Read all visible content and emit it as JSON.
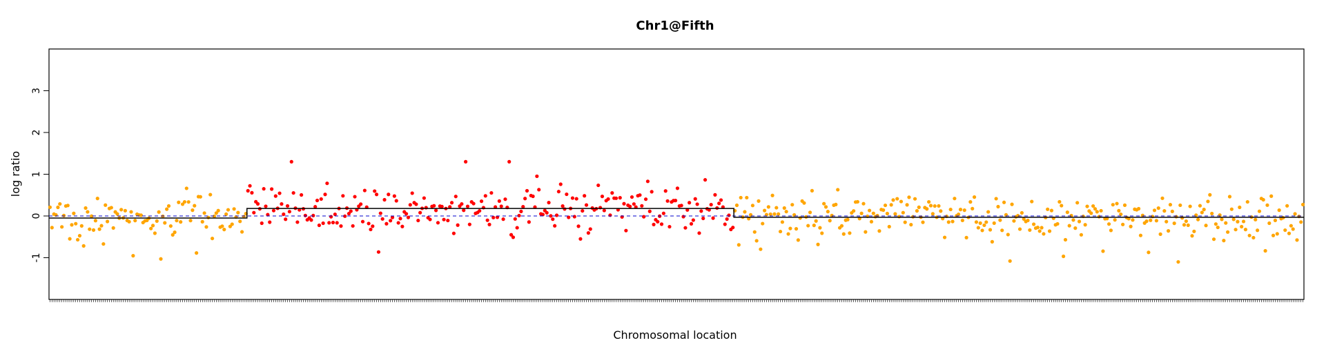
{
  "chart_data": {
    "type": "scatter",
    "title": "Chr1@Fifth",
    "xlabel": "Chromosomal location",
    "ylabel": "log ratio",
    "ylim": [
      -2,
      4
    ],
    "yticks": [
      -1,
      0,
      1,
      2,
      3
    ],
    "reference_line": 0,
    "n_points": 634,
    "series": [
      {
        "name": "",
        "color": "#FFA500",
        "x_range": [
          1,
          100
        ],
        "segment_mean": -0.05
      },
      {
        "name": "",
        "color": "#FF0000",
        "x_range": [
          101,
          346
        ],
        "segment_mean": 0.18
      },
      {
        "name": "",
        "color": "#FFA500",
        "x_range": [
          347,
          634
        ],
        "segment_mean": -0.03
      }
    ],
    "segment_line_color": "#000000",
    "reference_line_color": "#0000CC"
  }
}
